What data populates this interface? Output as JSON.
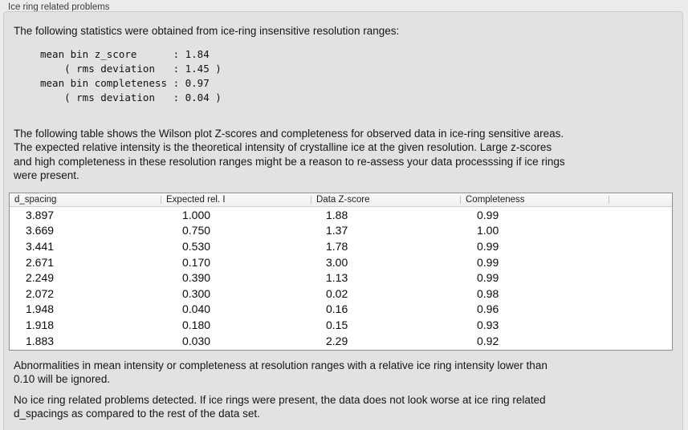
{
  "panel": {
    "title": "Ice ring related problems"
  },
  "colors": {
    "page_background": "#ececec",
    "panel_background": "#e2e2e2",
    "table_background": "#ffffff",
    "table_border": "#8f8f8f",
    "text": "#141414"
  },
  "stats": {
    "intro": "The following statistics were obtained from ice-ring insensitive resolution ranges:",
    "block": "mean bin z_score      : 1.84\n    ( rms deviation   : 1.45 )\nmean bin completeness : 0.97\n    ( rms deviation   : 0.04 )"
  },
  "table_intro": "The following table shows the Wilson plot Z-scores and completeness for observed data in ice-ring sensitive areas.\nThe expected relative intensity is the theoretical intensity of crystalline ice at the given resolution. Large z-scores\nand high completeness in these resolution ranges might be a reason to re-assess your data processsing if ice rings\nwere present.",
  "table": {
    "columns": [
      "d_spacing",
      "Expected rel. I",
      "Data Z-score",
      "Completeness"
    ],
    "rows": [
      [
        "3.897",
        "1.000",
        "1.88",
        "0.99"
      ],
      [
        "3.669",
        "0.750",
        "1.37",
        "1.00"
      ],
      [
        "3.441",
        "0.530",
        "1.78",
        "0.99"
      ],
      [
        "2.671",
        "0.170",
        "3.00",
        "0.99"
      ],
      [
        "2.249",
        "0.390",
        "1.13",
        "0.99"
      ],
      [
        "2.072",
        "0.300",
        "0.02",
        "0.98"
      ],
      [
        "1.948",
        "0.040",
        "0.16",
        "0.96"
      ],
      [
        "1.918",
        "0.180",
        "0.15",
        "0.93"
      ],
      [
        "1.883",
        "0.030",
        "2.29",
        "0.92"
      ]
    ]
  },
  "notes": {
    "ignore_rule": "Abnormalities in mean intensity or completeness at resolution ranges with a relative ice ring intensity lower than\n0.10 will be ignored.",
    "conclusion": "No ice ring related problems detected. If ice rings were present, the data does not look worse at ice ring related\nd_spacings as compared to the rest of the data set."
  }
}
